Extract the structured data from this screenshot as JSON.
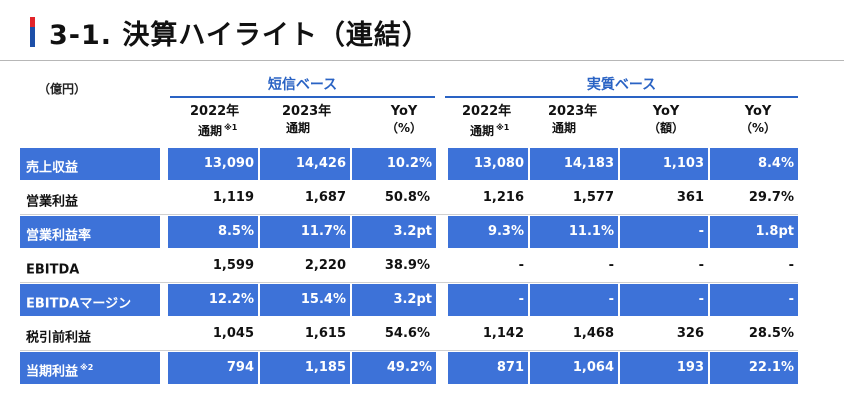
{
  "title": "3-1. 決算ハイライト（連結）",
  "unit": "（億円）",
  "groups": {
    "short": "短信ベース",
    "real": "実質ベース"
  },
  "columns": {
    "c1_l1": "2022年",
    "c1_l2": "通期",
    "c1_note": "※1",
    "c2_l1": "2023年",
    "c2_l2": "通期",
    "c3_l1": "YoY",
    "c3_l2": "（%）",
    "c4_l1": "2022年",
    "c4_l2": "通期",
    "c4_note": "※1",
    "c5_l1": "2023年",
    "c5_l2": "通期",
    "c6_l1": "YoY",
    "c6_l2": "（額）",
    "c7_l1": "YoY",
    "c7_l2": "（%）"
  },
  "rows": [
    {
      "label": "売上収益",
      "note": "",
      "v": [
        "13,090",
        "14,426",
        "10.2%",
        "13,080",
        "14,183",
        "1,103",
        "8.4%"
      ]
    },
    {
      "label": "営業利益",
      "note": "",
      "v": [
        "1,119",
        "1,687",
        "50.8%",
        "1,216",
        "1,577",
        "361",
        "29.7%"
      ]
    },
    {
      "label": "営業利益率",
      "note": "",
      "v": [
        "8.5%",
        "11.7%",
        "3.2pt",
        "9.3%",
        "11.1%",
        "-",
        "1.8pt"
      ]
    },
    {
      "label": "EBITDA",
      "note": "",
      "v": [
        "1,599",
        "2,220",
        "38.9%",
        "-",
        "-",
        "-",
        "-"
      ]
    },
    {
      "label": "EBITDAマージン",
      "note": "",
      "v": [
        "12.2%",
        "15.4%",
        "3.2pt",
        "-",
        "-",
        "-",
        "-"
      ]
    },
    {
      "label": "税引前利益",
      "note": "",
      "v": [
        "1,045",
        "1,615",
        "54.6%",
        "1,142",
        "1,468",
        "326",
        "28.5%"
      ]
    },
    {
      "label": "当期利益",
      "note": "※2",
      "v": [
        "794",
        "1,185",
        "49.2%",
        "871",
        "1,064",
        "193",
        "22.1%"
      ]
    }
  ]
}
